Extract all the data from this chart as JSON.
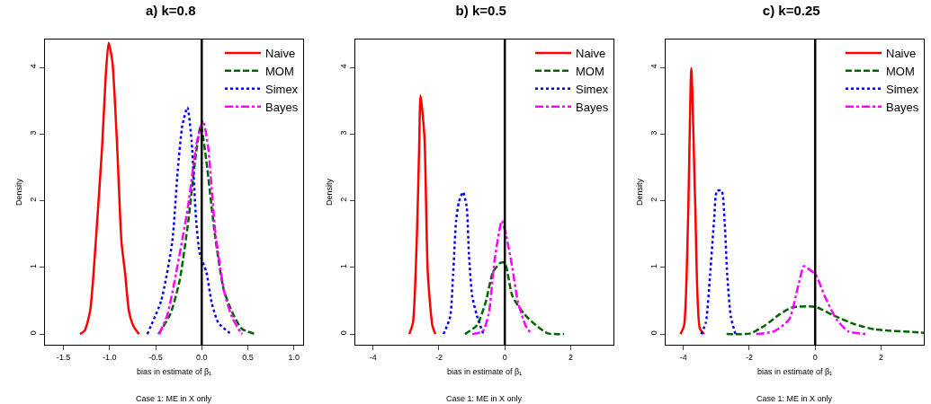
{
  "chart_data": [
    {
      "type": "line",
      "title": "a) k=0.8",
      "xlabel": "bias in estimate of β₁",
      "ylabel": "Density",
      "annotations": [
        "Case 1: ME in X only"
      ],
      "xlim": [
        -1.7,
        1.1
      ],
      "ylim": [
        -0.16,
        4.42
      ],
      "xticks": [
        -1.5,
        {
          "value": -1,
          "label": "-1.0"
        },
        -0.5,
        {
          "value": 0,
          "label": "0.0"
        },
        0.5,
        {
          "value": 1,
          "label": "1.0"
        }
      ],
      "yticks": [
        0,
        1,
        2,
        3,
        4
      ],
      "grid": false,
      "legend": "top right",
      "ref_lines": [
        {
          "axis": "x",
          "value": 0,
          "color": "#000000"
        }
      ],
      "series": [
        {
          "name": "Naive",
          "color": "#ff0000",
          "line_style": "solid",
          "x": [
            -1.32,
            -1.27,
            -1.21,
            -1.145,
            -1.08,
            -1.04,
            -1.01,
            -0.97,
            -0.92,
            -0.87,
            -0.83,
            -0.79,
            -0.74,
            -0.68
          ],
          "values": [
            0,
            0.05,
            0.35,
            1.47,
            2.82,
            3.9,
            4.37,
            4.1,
            2.9,
            1.38,
            0.9,
            0.35,
            0.12,
            0
          ]
        },
        {
          "name": "MOM",
          "color": "#006400",
          "line_style": "dashed",
          "x": [
            -0.47,
            -0.34,
            -0.24,
            -0.145,
            -0.06,
            -0.01,
            0.05,
            0.145,
            0.24,
            0.34,
            0.435,
            0.58
          ],
          "values": [
            0,
            0.3,
            0.8,
            1.7,
            2.73,
            3.13,
            2.6,
            1.47,
            0.66,
            0.3,
            0.08,
            0
          ]
        },
        {
          "name": "Simex",
          "color": "#0000ff",
          "line_style": "dotted",
          "x": [
            -0.59,
            -0.44,
            -0.32,
            -0.26,
            -0.21,
            -0.155,
            -0.11,
            -0.06,
            -0.02,
            0.05,
            0.11,
            0.18,
            0.32
          ],
          "values": [
            0,
            0.5,
            1.38,
            2.46,
            3.13,
            3.4,
            2.9,
            1.7,
            1.2,
            0.93,
            0.46,
            0.17,
            0
          ]
        },
        {
          "name": "Bayes",
          "color": "#ff00ff",
          "line_style": "dashdot",
          "x": [
            -0.46,
            -0.37,
            -0.28,
            -0.15,
            -0.05,
            0.015,
            0.07,
            0.15,
            0.25,
            0.33,
            0.42,
            0.44
          ],
          "values": [
            0,
            0.3,
            0.9,
            1.9,
            2.9,
            3.2,
            2.8,
            1.5,
            0.6,
            0.25,
            0.03,
            0
          ]
        }
      ]
    },
    {
      "type": "line",
      "title": "b) k=0.5",
      "xlabel": "bias in estimate of β₁",
      "ylabel": "Density",
      "annotations": [
        "Case 1: ME in X only"
      ],
      "xlim": [
        -4.54,
        3.3
      ],
      "ylim": [
        -0.16,
        4.42
      ],
      "xticks": [
        -4,
        -2,
        0,
        2
      ],
      "yticks": [
        0,
        1,
        2,
        3,
        4
      ],
      "grid": false,
      "legend": "top right",
      "ref_lines": [
        {
          "axis": "x",
          "value": 0,
          "color": "#000000"
        }
      ],
      "series": [
        {
          "name": "Naive",
          "color": "#ff0000",
          "line_style": "solid",
          "x": [
            -2.9,
            -2.79,
            -2.67,
            -2.6,
            -2.56,
            -2.44,
            -2.34,
            -2.2,
            -2.11
          ],
          "values": [
            0,
            0.17,
            1.47,
            2.82,
            3.58,
            2.95,
            0.93,
            0.13,
            0
          ]
        },
        {
          "name": "MOM",
          "color": "#006400",
          "line_style": "dashed",
          "x": [
            -1.21,
            -0.85,
            -0.58,
            -0.36,
            -0.13,
            0,
            0.23,
            0.59,
            0.95,
            1.31,
            1.8
          ],
          "values": [
            0,
            0.13,
            0.48,
            0.93,
            1.07,
            1.07,
            0.57,
            0.3,
            0.13,
            0.01,
            0
          ]
        },
        {
          "name": "Simex",
          "color": "#0000ff",
          "line_style": "dotted",
          "x": [
            -1.86,
            -1.66,
            -1.57,
            -1.48,
            -1.39,
            -1.27,
            -1.16,
            -1.09,
            -0.99,
            -0.85,
            -0.65
          ],
          "values": [
            0,
            0.26,
            0.89,
            1.7,
            1.99,
            2.13,
            1.92,
            1.2,
            0.57,
            0.28,
            0
          ]
        },
        {
          "name": "Bayes",
          "color": "#ff00ff",
          "line_style": "dashdot",
          "x": [
            -0.99,
            -0.67,
            -0.49,
            -0.31,
            -0.09,
            0.045,
            0.22,
            0.4,
            0.63,
            0.81
          ],
          "values": [
            0,
            0.04,
            0.3,
            1.11,
            1.7,
            1.47,
            1.02,
            0.48,
            0.13,
            0
          ]
        }
      ]
    },
    {
      "type": "line",
      "title": "c) k=0.25",
      "xlabel": "bias in estimate of β₁",
      "ylabel": "Density",
      "annotations": [
        "Case 1: ME in X only"
      ],
      "xlim": [
        -4.54,
        3.3
      ],
      "ylim": [
        -0.16,
        4.42
      ],
      "xticks": [
        -4,
        -2,
        0,
        2
      ],
      "yticks": [
        0,
        1,
        2,
        3,
        4
      ],
      "grid": false,
      "legend": "top right",
      "ref_lines": [
        {
          "axis": "x",
          "value": 0,
          "color": "#000000"
        }
      ],
      "series": [
        {
          "name": "Naive",
          "color": "#ff0000",
          "line_style": "solid",
          "x": [
            -4.09,
            -3.98,
            -3.86,
            -3.76,
            -3.64,
            -3.5,
            -3.37
          ],
          "values": [
            0,
            0.13,
            1.7,
            3.99,
            1.92,
            0.08,
            0
          ]
        },
        {
          "name": "MOM",
          "color": "#006400",
          "line_style": "dashed",
          "x": [
            -2.69,
            -1.97,
            -1.52,
            -1.07,
            -0.7,
            0,
            0.56,
            1.19,
            1.82,
            3.04,
            3.3
          ],
          "values": [
            0,
            0.01,
            0.13,
            0.3,
            0.4,
            0.41,
            0.28,
            0.15,
            0.07,
            0.03,
            0.02
          ]
        },
        {
          "name": "Simex",
          "color": "#0000ff",
          "line_style": "dotted",
          "x": [
            -3.46,
            -3.32,
            -3.19,
            -3.07,
            -2.98,
            -2.84,
            -2.75,
            -2.67,
            -2.56,
            -2.42
          ],
          "values": [
            0,
            0.17,
            0.89,
            1.7,
            2.15,
            2.15,
            1.7,
            0.89,
            0.26,
            0
          ]
        },
        {
          "name": "Bayes",
          "color": "#ff00ff",
          "line_style": "dashdot",
          "x": [
            -1.79,
            -1.25,
            -0.79,
            -0.52,
            -0.34,
            -0.21,
            0.02,
            0.29,
            0.65,
            1.01,
            1.6
          ],
          "values": [
            0,
            0.04,
            0.22,
            0.71,
            1.02,
            0.98,
            0.89,
            0.57,
            0.22,
            0.04,
            0
          ]
        }
      ]
    }
  ]
}
